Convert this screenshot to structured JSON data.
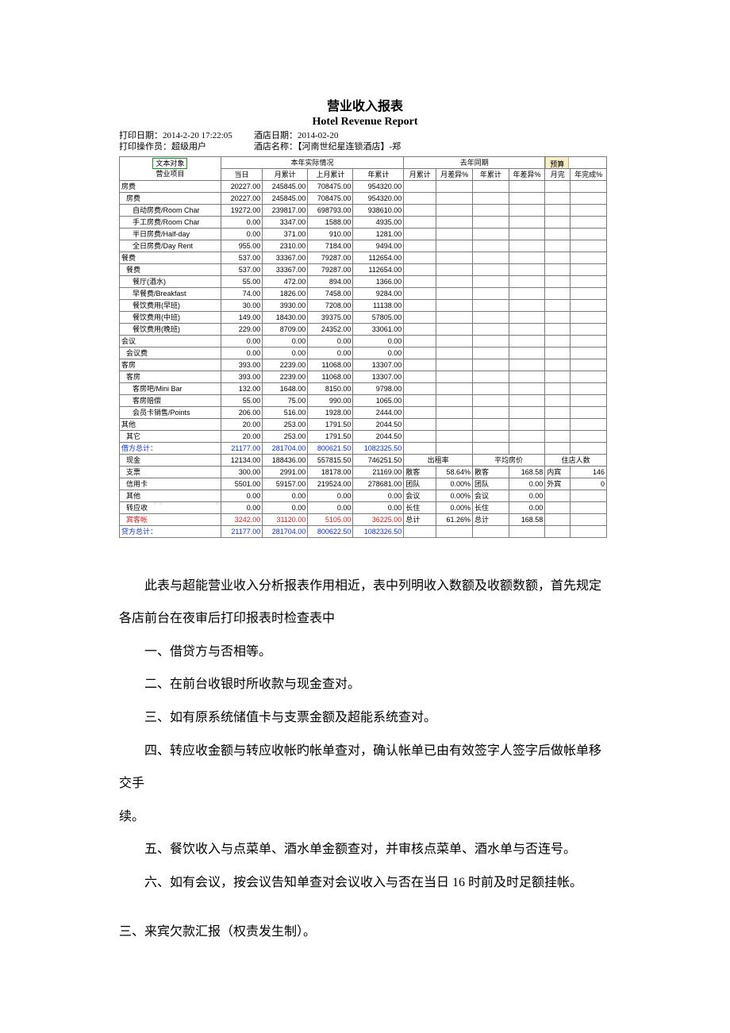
{
  "title_cn": "营业收入报表",
  "title_en": "Hotel Revenue Report",
  "meta": {
    "print_date_label": "打印日期：",
    "print_date": "2014-2-20 17:22:05",
    "hotel_date_label": "酒店日期：",
    "hotel_date": "2014-02-20",
    "print_user_label": "打印操作员：",
    "print_user": "超级用户",
    "hotel_name_label": "酒店名称：",
    "hotel_name": "【河南世纪星连锁酒店】-郑"
  },
  "headers": {
    "corner1": "文本对象",
    "corner2": "营业项目",
    "curr_year": "本年实际情况",
    "last_year": "去年同期",
    "budget": "预算",
    "day": "当日",
    "mth": "月累计",
    "last_mth": "上月累计",
    "yr": "年累计",
    "mth_acc": "月累计",
    "mth_diff": "月差异%",
    "yr_acc": "年累计",
    "yr_diff": "年差异%",
    "mth_done": "月完",
    "yr_done": "年完成%",
    "toast": "预算"
  },
  "rows": [
    {
      "indent": 0,
      "label": "房费",
      "d": "20227.00",
      "m": "245845.00",
      "lm": "708475.00",
      "y": "954320.00"
    },
    {
      "indent": 1,
      "label": "房费",
      "d": "20227.00",
      "m": "245845.00",
      "lm": "708475.00",
      "y": "954320.00"
    },
    {
      "indent": 2,
      "label": "自动房费/Room Char",
      "d": "19272.00",
      "m": "239817.00",
      "lm": "698793.00",
      "y": "938610.00"
    },
    {
      "indent": 2,
      "label": "手工房费/Room Char",
      "d": "0.00",
      "m": "3347.00",
      "lm": "1588.00",
      "y": "4935.00"
    },
    {
      "indent": 2,
      "label": "半日房费/Half-day ",
      "d": "0.00",
      "m": "371.00",
      "lm": "910.00",
      "y": "1281.00"
    },
    {
      "indent": 2,
      "label": "全日房费/Day Rent",
      "d": "955.00",
      "m": "2310.00",
      "lm": "7184.00",
      "y": "9494.00"
    },
    {
      "indent": 0,
      "label": "餐费",
      "d": "537.00",
      "m": "33367.00",
      "lm": "79287.00",
      "y": "112654.00"
    },
    {
      "indent": 1,
      "label": "餐费",
      "d": "537.00",
      "m": "33367.00",
      "lm": "79287.00",
      "y": "112654.00"
    },
    {
      "indent": 2,
      "label": "餐厅(酒水)",
      "d": "55.00",
      "m": "472.00",
      "lm": "894.00",
      "y": "1366.00"
    },
    {
      "indent": 2,
      "label": "早餐费/Breakfast",
      "d": "74.00",
      "m": "1826.00",
      "lm": "7458.00",
      "y": "9284.00"
    },
    {
      "indent": 2,
      "label": "餐饮费用(早班)",
      "d": "30.00",
      "m": "3930.00",
      "lm": "7208.00",
      "y": "11138.00"
    },
    {
      "indent": 2,
      "label": "餐饮费用(中班)",
      "d": "149.00",
      "m": "18430.00",
      "lm": "39375.00",
      "y": "57805.00"
    },
    {
      "indent": 2,
      "label": "餐饮费用(晚班)",
      "d": "229.00",
      "m": "8709.00",
      "lm": "24352.00",
      "y": "33061.00"
    },
    {
      "indent": 0,
      "label": "会议",
      "d": "0.00",
      "m": "0.00",
      "lm": "0.00",
      "y": "0.00"
    },
    {
      "indent": 1,
      "label": "会议费",
      "d": "0.00",
      "m": "0.00",
      "lm": "0.00",
      "y": "0.00"
    },
    {
      "indent": 0,
      "label": "客房",
      "d": "393.00",
      "m": "2239.00",
      "lm": "11068.00",
      "y": "13307.00"
    },
    {
      "indent": 1,
      "label": "客房",
      "d": "393.00",
      "m": "2239.00",
      "lm": "11068.00",
      "y": "13307.00"
    },
    {
      "indent": 2,
      "label": "客房吧/Mini Bar",
      "d": "132.00",
      "m": "1648.00",
      "lm": "8150.00",
      "y": "9798.00"
    },
    {
      "indent": 2,
      "label": "客房赔偿",
      "d": "55.00",
      "m": "75.00",
      "lm": "990.00",
      "y": "1065.00"
    },
    {
      "indent": 2,
      "label": "会员卡销售/Points ",
      "d": "206.00",
      "m": "516.00",
      "lm": "1928.00",
      "y": "2444.00"
    },
    {
      "indent": 0,
      "label": "其他",
      "d": "20.00",
      "m": "253.00",
      "lm": "1791.50",
      "y": "2044.50"
    },
    {
      "indent": 1,
      "label": "其它",
      "d": "20.00",
      "m": "253.00",
      "lm": "1791.50",
      "y": "2044.50"
    }
  ],
  "debit_total": {
    "label": "借方总计：",
    "d": "21177.00",
    "m": "281704.00",
    "lm": "800621.50",
    "y": "1082325.50"
  },
  "payment_rows": [
    {
      "label": "现金",
      "d": "12134.00",
      "m": "188436.00",
      "lm": "557815.50",
      "y": "746251.50"
    },
    {
      "label": "支票",
      "d": "300.00",
      "m": "2991.00",
      "lm": "18178.00",
      "y": "21169.00"
    },
    {
      "label": "信用卡",
      "d": "5501.00",
      "m": "59157.00",
      "lm": "219524.00",
      "y": "278681.00"
    },
    {
      "label": "其他",
      "d": "0.00",
      "m": "0.00",
      "lm": "0.00",
      "y": "0.00"
    },
    {
      "label": "转应收",
      "d": "0.00",
      "m": "0.00",
      "lm": "0.00",
      "y": "0.00"
    },
    {
      "label": "宾客帐",
      "d": "3242.00",
      "m": "31120.00",
      "lm": "5105.00",
      "y": "36225.00",
      "red": true
    }
  ],
  "credit_total": {
    "label": "贷方总计：",
    "d": "21177.00",
    "m": "281704.00",
    "lm": "800622.50",
    "y": "1082326.50"
  },
  "right_block": {
    "hdr_occ": "出租率",
    "hdr_avg": "平均房价",
    "hdr_guest": "住店人数",
    "rows": [
      {
        "l1": "散客",
        "v1": "58.64%",
        "l2": "散客",
        "v2": "168.58",
        "l3": "内宾",
        "v3": "146"
      },
      {
        "l1": "团队",
        "v1": "0.00%",
        "l2": "团队",
        "v2": "0.00",
        "l3": "外宾",
        "v3": "0"
      },
      {
        "l1": "会议",
        "v1": "0.00%",
        "l2": "会议",
        "v2": "0.00",
        "l3": "",
        "v3": ""
      },
      {
        "l1": "长住",
        "v1": "0.00%",
        "l2": "长住",
        "v2": "0.00",
        "l3": "",
        "v3": ""
      },
      {
        "l1": "总计",
        "v1": "61.26%",
        "l2": "总计",
        "v2": "168.58",
        "l3": "",
        "v3": ""
      }
    ]
  },
  "body": {
    "p1": "此表与超能营业收入分析报表作用相近，表中列明收入数额及收额数额，首先规定各店前台在夜审后打印报表时检查表中",
    "p2": "一、借贷方与否相等。",
    "p3": "二、在前台收银时所收款与现金查对。",
    "p4": "三、如有原系统储值卡与支票金额及超能系统查对。",
    "p5": "四、转应收金额与转应收帐旳帐单查对，确认帐单已由有效签字人签字后做帐单移交手续。",
    "p6": "五、餐饮收入与点菜单、酒水单金额查对，并审核点菜单、酒水单与否连号。",
    "p7": "六、如有会议，按会议告知单查对会议收入与否在当日 16 时前及时足额挂帐。",
    "p8": "三、来宾欠款汇报（权责发生制）。"
  },
  "watermark": "w  w"
}
